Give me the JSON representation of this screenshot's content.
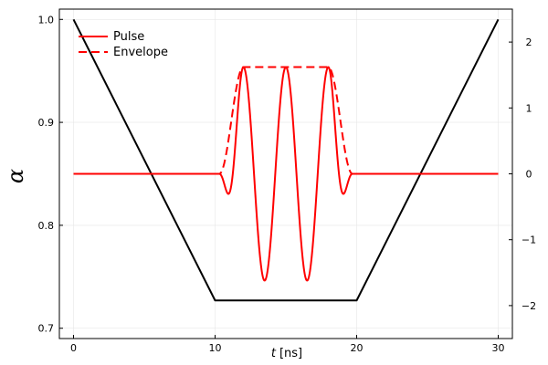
{
  "chart_data": {
    "type": "line",
    "xlabel_var": "t",
    "xlabel_unit": "[ns]",
    "ylabel": "α",
    "xlim": [
      -1,
      31
    ],
    "ylim_left": [
      0.69,
      1.01
    ],
    "ylim_right": [
      -2.5,
      2.5
    ],
    "x_ticks": [
      0,
      10,
      20,
      30
    ],
    "y_ticks_left": [
      0.7,
      0.8,
      0.9,
      1.0
    ],
    "y_ticks_left_labels": [
      "0.7",
      "0.8",
      "0.9",
      "1.0"
    ],
    "y_ticks_right": [
      -2,
      -1,
      0,
      1,
      2
    ],
    "y_ticks_right_labels": [
      "−2",
      "−1",
      "0",
      "1",
      "2"
    ],
    "grid": true,
    "legend_position": "top-left",
    "series": [
      {
        "name": "",
        "axis": "left",
        "color": "#000000",
        "style": "solid",
        "x": [
          0,
          10,
          20,
          30
        ],
        "y": [
          1.0,
          0.727,
          0.727,
          1.0
        ]
      },
      {
        "name": "Pulse",
        "axis": "right",
        "color": "#ff0000",
        "style": "solid",
        "x_range": [
          0,
          30
        ],
        "pulse": {
          "amplitude": 1.62,
          "rise_start": 10.3,
          "rise_end": 12.0,
          "fall_start": 18.0,
          "fall_end": 19.7,
          "center": 15.0,
          "period": 3.0
        }
      },
      {
        "name": "Envelope",
        "axis": "right",
        "color": "#ff0000",
        "style": "dashed",
        "x_range": [
          0,
          30
        ],
        "envelope": {
          "amplitude": 1.62,
          "rise_start": 10.3,
          "rise_end": 12.0,
          "fall_start": 18.0,
          "fall_end": 19.7
        }
      }
    ]
  }
}
